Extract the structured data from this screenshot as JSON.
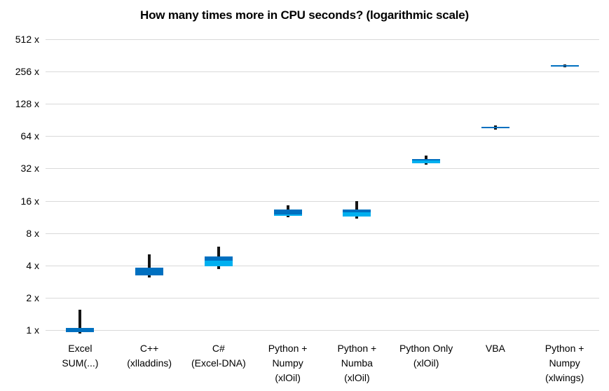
{
  "chart_data": {
    "type": "boxplot",
    "title": "How many times more in CPU seconds? (logarithmic scale)",
    "scale": "log2",
    "grid": true,
    "ylim": [
      1,
      512
    ],
    "y_axis": {
      "tick_values": [
        512,
        256,
        128,
        64,
        32,
        16,
        8,
        4,
        2,
        1
      ],
      "tick_labels": [
        "512 x",
        "256 x",
        "128 x",
        "64 x",
        "32 x",
        "16 x",
        "8 x",
        "4 x",
        "2 x",
        "1 x"
      ]
    },
    "categories": [
      "Excel SUM(...)",
      "C++ (xlladdins)",
      "C# (Excel-DNA)",
      "Python + Numpy (xlOil)",
      "Python + Numba (xlOil)",
      "Python Only (xlOil)",
      "VBA",
      "Python + Numpy (xlwings)"
    ],
    "series": [
      {
        "label_lines": [
          "Excel",
          "SUM(...)"
        ],
        "low": 0.93,
        "box_low": 0.95,
        "box_mid": 0.95,
        "box_high": 1.05,
        "high": 1.55
      },
      {
        "label_lines": [
          "C++",
          "(xlladdins)"
        ],
        "low": 3.1,
        "box_low": 3.25,
        "box_mid": 3.25,
        "box_high": 3.8,
        "high": 5.1
      },
      {
        "label_lines": [
          "C#",
          "(Excel-DNA)"
        ],
        "low": 3.7,
        "box_low": 3.9,
        "box_mid": 4.45,
        "box_high": 4.85,
        "high": 6.0
      },
      {
        "label_lines": [
          "Python +",
          "Numpy",
          "(xlOil)"
        ],
        "low": 11.2,
        "box_low": 11.65,
        "box_mid": 11.95,
        "box_high": 13.3,
        "high": 14.6
      },
      {
        "label_lines": [
          "Python +",
          "Numba",
          "(xlOil)"
        ],
        "low": 10.9,
        "box_low": 11.5,
        "box_mid": 12.5,
        "box_high": 13.2,
        "high": 15.9
      },
      {
        "label_lines": [
          "Python Only",
          "(xlOil)"
        ],
        "low": 34.5,
        "box_low": 35.8,
        "box_mid": 37.8,
        "box_high": 39.4,
        "high": 42.0
      },
      {
        "label_lines": [
          "VBA"
        ],
        "low": 74.0,
        "box_low": 76.0,
        "box_mid": 76.0,
        "box_high": 78.5,
        "high": 80.5
      },
      {
        "label_lines": [
          "Python +",
          "Numpy",
          "(xlwings)"
        ],
        "low": 282,
        "box_low": 286,
        "box_mid": 286,
        "box_high": 295,
        "high": 300
      }
    ],
    "colors": {
      "box_upper": "#0070c0",
      "box_lower": "#00b0f0",
      "whisker": "#161616",
      "gridline": "#d9d9d9",
      "text": "#000000",
      "background": "#ffffff"
    },
    "legend": "none"
  }
}
